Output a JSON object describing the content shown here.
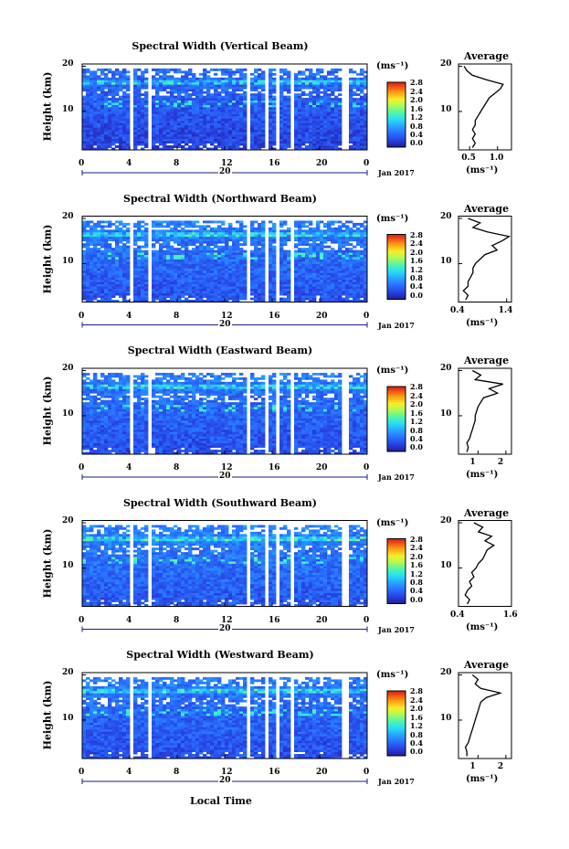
{
  "figure": {
    "xlabel": "Local Time",
    "date_label": "Jan 2017",
    "day_label": "20",
    "time_ticks": [
      "0",
      "4",
      "8",
      "12",
      "16",
      "20",
      "0"
    ],
    "height_ticks": [
      "20",
      "10"
    ],
    "ylabel": "Height (km)",
    "unit_label": "(ms⁻¹)",
    "colorbar_ticks": [
      "2.8",
      "2.4",
      "2.0",
      "1.6",
      "1.2",
      "0.8",
      "0.4",
      "0.0"
    ],
    "avg_title": "Average"
  },
  "chart_data": [
    {
      "type": "heatmap",
      "title": "Spectral Width (Vertical Beam)",
      "xlabel": "",
      "ylabel": "Height (km)",
      "x_range_hours": [
        0,
        24
      ],
      "ylim_km": [
        1.5,
        20.5
      ],
      "colorbar_range": [
        0.0,
        3.0
      ],
      "data_gaps_hours": [
        [
          4.0,
          4.3
        ],
        [
          5.6,
          5.9
        ],
        [
          13.8,
          14.2
        ],
        [
          15.5,
          15.8
        ],
        [
          16.4,
          16.7
        ],
        [
          17.6,
          17.9
        ],
        [
          22.0,
          22.4
        ]
      ],
      "mean_level": 0.55,
      "average_profile": {
        "xticks": [
          "0.5",
          "1.0"
        ],
        "xlim": [
          0.3,
          1.25
        ],
        "heights_km": [
          2,
          3,
          4,
          5,
          6,
          7,
          8,
          9,
          10,
          11,
          12,
          13,
          14,
          15,
          16,
          17,
          18,
          19,
          20
        ],
        "values": [
          0.55,
          0.6,
          0.55,
          0.6,
          0.55,
          0.6,
          0.6,
          0.65,
          0.7,
          0.75,
          0.8,
          0.85,
          0.95,
          1.05,
          1.1,
          0.8,
          0.55,
          0.45,
          0.4
        ]
      }
    },
    {
      "type": "heatmap",
      "title": "Spectral Width (Northward Beam)",
      "xlabel": "",
      "ylabel": "Height (km)",
      "x_range_hours": [
        0,
        24
      ],
      "ylim_km": [
        1.5,
        20.5
      ],
      "colorbar_range": [
        0.0,
        3.0
      ],
      "data_gaps_hours": [
        [
          4.0,
          4.3
        ],
        [
          5.6,
          5.9
        ],
        [
          13.8,
          14.2
        ],
        [
          15.5,
          15.8
        ],
        [
          16.4,
          16.7
        ],
        [
          17.6,
          17.9
        ]
      ],
      "mean_level": 0.75,
      "average_profile": {
        "xticks": [
          "0.4",
          "1.4"
        ],
        "xlim": [
          0.4,
          1.5
        ],
        "heights_km": [
          2,
          3,
          4,
          5,
          6,
          7,
          8,
          9,
          10,
          11,
          12,
          13,
          14,
          15,
          16,
          17,
          18,
          19,
          20
        ],
        "values": [
          0.55,
          0.6,
          0.5,
          0.6,
          0.6,
          0.65,
          0.7,
          0.7,
          0.75,
          0.85,
          0.95,
          1.2,
          1.1,
          1.3,
          1.45,
          1.0,
          0.7,
          0.85,
          0.6
        ]
      }
    },
    {
      "type": "heatmap",
      "title": "Spectral Width (Eastward Beam)",
      "xlabel": "",
      "ylabel": "Height (km)",
      "x_range_hours": [
        0,
        24
      ],
      "ylim_km": [
        1.5,
        20.5
      ],
      "colorbar_range": [
        0.0,
        3.0
      ],
      "data_gaps_hours": [
        [
          4.0,
          4.3
        ],
        [
          5.6,
          5.9
        ],
        [
          13.8,
          14.2
        ],
        [
          15.5,
          15.8
        ],
        [
          16.4,
          16.7
        ],
        [
          17.6,
          17.9
        ],
        [
          22.0,
          22.4
        ]
      ],
      "mean_level": 0.7,
      "average_profile": {
        "xticks": [
          "1",
          "2"
        ],
        "xlim": [
          0.3,
          2.2
        ],
        "heights_km": [
          2,
          3,
          4,
          5,
          6,
          7,
          8,
          9,
          10,
          11,
          12,
          13,
          14,
          15,
          16,
          17,
          18,
          19,
          20
        ],
        "values": [
          0.6,
          0.65,
          0.6,
          0.7,
          0.75,
          0.8,
          0.85,
          0.9,
          0.9,
          0.95,
          1.0,
          1.1,
          1.2,
          1.7,
          1.4,
          1.9,
          0.9,
          1.1,
          0.8
        ]
      }
    },
    {
      "type": "heatmap",
      "title": "Spectral Width (Southward Beam)",
      "xlabel": "",
      "ylabel": "Height (km)",
      "x_range_hours": [
        0,
        24
      ],
      "ylim_km": [
        1.5,
        20.5
      ],
      "colorbar_range": [
        0.0,
        3.0
      ],
      "data_gaps_hours": [
        [
          4.0,
          4.3
        ],
        [
          5.6,
          5.9
        ],
        [
          13.8,
          14.2
        ],
        [
          15.5,
          15.8
        ],
        [
          16.4,
          16.7
        ],
        [
          17.6,
          17.9
        ],
        [
          22.0,
          22.4
        ]
      ],
      "mean_level": 0.8,
      "average_profile": {
        "xticks": [
          "0.4",
          "1.6"
        ],
        "xlim": [
          0.4,
          1.6
        ],
        "heights_km": [
          2,
          3,
          4,
          5,
          6,
          7,
          8,
          9,
          10,
          11,
          12,
          13,
          14,
          15,
          16,
          17,
          18,
          19,
          20
        ],
        "values": [
          0.6,
          0.65,
          0.55,
          0.6,
          0.7,
          0.65,
          0.75,
          0.7,
          0.8,
          0.85,
          0.95,
          1.0,
          1.05,
          1.2,
          1.0,
          1.15,
          0.85,
          0.95,
          0.75
        ]
      }
    },
    {
      "type": "heatmap",
      "title": "Spectral Width (Westward Beam)",
      "xlabel": "Local Time",
      "ylabel": "Height (km)",
      "x_range_hours": [
        0,
        24
      ],
      "ylim_km": [
        1.5,
        20.5
      ],
      "colorbar_range": [
        0.0,
        3.0
      ],
      "data_gaps_hours": [
        [
          4.0,
          4.3
        ],
        [
          5.6,
          5.9
        ],
        [
          13.8,
          14.2
        ],
        [
          15.5,
          15.8
        ],
        [
          16.4,
          16.7
        ],
        [
          17.6,
          17.9
        ],
        [
          22.0,
          22.4
        ]
      ],
      "mean_level": 0.7,
      "average_profile": {
        "xticks": [
          "1",
          "2"
        ],
        "xlim": [
          0.3,
          2.2
        ],
        "heights_km": [
          2,
          3,
          4,
          5,
          6,
          7,
          8,
          9,
          10,
          11,
          12,
          13,
          14,
          15,
          16,
          17,
          18,
          19,
          20
        ],
        "values": [
          0.6,
          0.6,
          0.55,
          0.65,
          0.7,
          0.75,
          0.8,
          0.85,
          0.9,
          0.95,
          1.0,
          1.05,
          1.1,
          1.3,
          1.8,
          1.1,
          0.9,
          1.0,
          0.8
        ]
      }
    }
  ]
}
